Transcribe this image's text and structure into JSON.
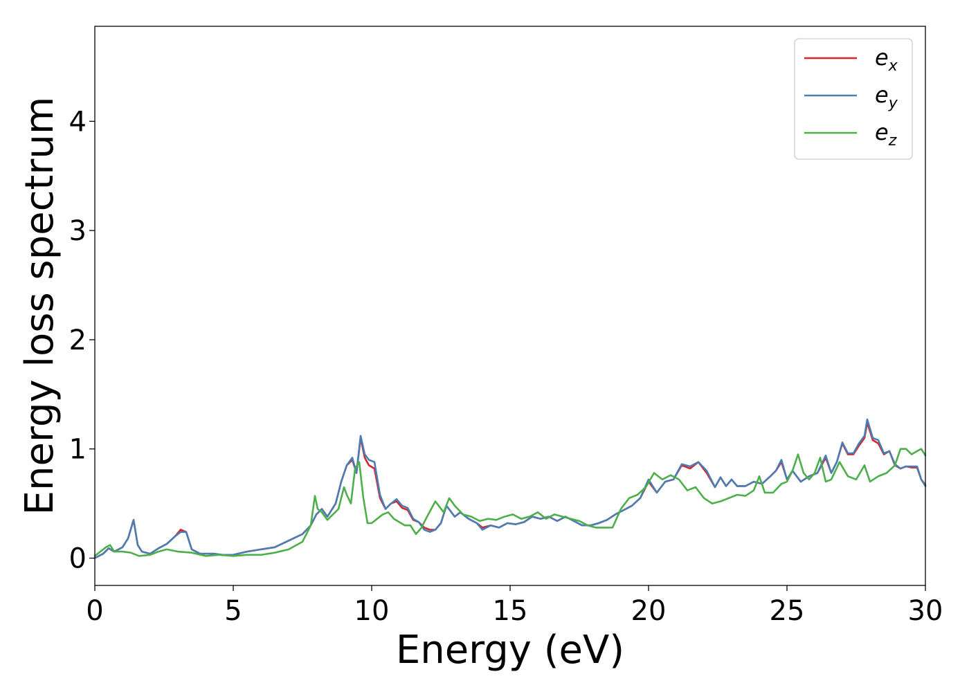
{
  "chart_data": {
    "type": "line",
    "xlabel": "Energy (eV)",
    "ylabel": "Energy loss spectrum",
    "xlim": [
      0,
      30
    ],
    "ylim": [
      -0.25,
      4.87
    ],
    "xticks": [
      "0",
      "5",
      "10",
      "15",
      "20",
      "25",
      "30"
    ],
    "yticks": [
      "0",
      "1",
      "2",
      "3",
      "4"
    ],
    "grid": false,
    "legend_position": "top-right",
    "series": [
      {
        "name": "e_x",
        "legend_base": "e",
        "legend_sub": "x",
        "color": "#d62728",
        "x": [
          0,
          0.3,
          0.5,
          0.7,
          1.0,
          1.2,
          1.4,
          1.55,
          1.7,
          2.0,
          2.3,
          2.6,
          2.9,
          3.1,
          3.3,
          3.5,
          3.8,
          4.0,
          4.3,
          4.6,
          5.0,
          5.5,
          6.0,
          6.5,
          7.0,
          7.5,
          7.8,
          8.0,
          8.2,
          8.4,
          8.7,
          8.9,
          9.1,
          9.3,
          9.45,
          9.6,
          9.75,
          9.9,
          10.1,
          10.3,
          10.5,
          10.7,
          10.9,
          11.1,
          11.3,
          11.5,
          11.7,
          11.9,
          12.1,
          12.3,
          12.5,
          12.7,
          13.0,
          13.2,
          13.5,
          13.8,
          14.0,
          14.3,
          14.6,
          14.9,
          15.2,
          15.5,
          15.8,
          16.1,
          16.4,
          16.7,
          17.0,
          17.3,
          17.6,
          17.9,
          18.2,
          18.5,
          18.8,
          19.1,
          19.4,
          19.7,
          20.0,
          20.3,
          20.6,
          20.9,
          21.2,
          21.5,
          21.8,
          22.1,
          22.4,
          22.6,
          22.8,
          23.0,
          23.2,
          23.5,
          23.8,
          24.1,
          24.4,
          24.6,
          24.8,
          25.0,
          25.2,
          25.5,
          25.8,
          26.1,
          26.4,
          26.6,
          26.8,
          27.0,
          27.2,
          27.4,
          27.6,
          27.8,
          27.9,
          28.1,
          28.3,
          28.5,
          28.7,
          28.9,
          29.1,
          29.3,
          29.5,
          29.7,
          29.85,
          30.0
        ],
        "y": [
          0.0,
          0.04,
          0.09,
          0.06,
          0.1,
          0.18,
          0.35,
          0.12,
          0.06,
          0.04,
          0.09,
          0.13,
          0.2,
          0.26,
          0.24,
          0.08,
          0.04,
          0.04,
          0.04,
          0.03,
          0.03,
          0.06,
          0.08,
          0.1,
          0.16,
          0.22,
          0.3,
          0.4,
          0.45,
          0.38,
          0.5,
          0.7,
          0.85,
          0.9,
          0.78,
          1.1,
          0.92,
          0.85,
          0.82,
          0.55,
          0.45,
          0.5,
          0.52,
          0.46,
          0.44,
          0.35,
          0.33,
          0.28,
          0.26,
          0.26,
          0.32,
          0.48,
          0.38,
          0.42,
          0.36,
          0.32,
          0.28,
          0.3,
          0.28,
          0.32,
          0.31,
          0.33,
          0.38,
          0.36,
          0.38,
          0.34,
          0.38,
          0.34,
          0.3,
          0.3,
          0.32,
          0.35,
          0.4,
          0.44,
          0.48,
          0.55,
          0.7,
          0.6,
          0.7,
          0.72,
          0.85,
          0.82,
          0.88,
          0.78,
          0.65,
          0.74,
          0.66,
          0.72,
          0.66,
          0.66,
          0.7,
          0.68,
          0.75,
          0.8,
          0.88,
          0.72,
          0.8,
          0.7,
          0.75,
          0.78,
          0.92,
          0.78,
          0.88,
          1.05,
          0.95,
          0.95,
          1.03,
          1.1,
          1.24,
          1.08,
          1.05,
          0.95,
          0.98,
          0.85,
          0.82,
          0.84,
          0.83,
          0.83,
          0.72,
          0.67
        ]
      },
      {
        "name": "e_y",
        "legend_base": "e",
        "legend_sub": "y",
        "color": "#4a7db5",
        "x": [
          0,
          0.3,
          0.5,
          0.7,
          1.0,
          1.2,
          1.4,
          1.55,
          1.7,
          2.0,
          2.3,
          2.6,
          2.9,
          3.1,
          3.3,
          3.5,
          3.8,
          4.0,
          4.3,
          4.6,
          5.0,
          5.5,
          6.0,
          6.5,
          7.0,
          7.5,
          7.8,
          8.0,
          8.2,
          8.4,
          8.7,
          8.9,
          9.1,
          9.3,
          9.45,
          9.6,
          9.75,
          9.9,
          10.1,
          10.3,
          10.5,
          10.7,
          10.9,
          11.1,
          11.3,
          11.5,
          11.7,
          11.9,
          12.1,
          12.3,
          12.5,
          12.7,
          13.0,
          13.2,
          13.5,
          13.8,
          14.0,
          14.3,
          14.6,
          14.9,
          15.2,
          15.5,
          15.8,
          16.1,
          16.4,
          16.7,
          17.0,
          17.3,
          17.6,
          17.9,
          18.2,
          18.5,
          18.8,
          19.1,
          19.4,
          19.7,
          20.0,
          20.3,
          20.6,
          20.9,
          21.2,
          21.5,
          21.8,
          22.1,
          22.4,
          22.6,
          22.8,
          23.0,
          23.2,
          23.5,
          23.8,
          24.1,
          24.4,
          24.6,
          24.8,
          25.0,
          25.2,
          25.5,
          25.8,
          26.1,
          26.4,
          26.6,
          26.8,
          27.0,
          27.2,
          27.4,
          27.6,
          27.8,
          27.9,
          28.1,
          28.3,
          28.5,
          28.7,
          28.9,
          29.1,
          29.3,
          29.5,
          29.7,
          29.85,
          30.0
        ],
        "y": [
          0.0,
          0.04,
          0.09,
          0.06,
          0.1,
          0.18,
          0.35,
          0.12,
          0.06,
          0.04,
          0.09,
          0.13,
          0.2,
          0.24,
          0.24,
          0.08,
          0.04,
          0.04,
          0.04,
          0.03,
          0.03,
          0.06,
          0.08,
          0.1,
          0.16,
          0.22,
          0.3,
          0.4,
          0.45,
          0.38,
          0.5,
          0.7,
          0.85,
          0.92,
          0.78,
          1.12,
          0.95,
          0.9,
          0.88,
          0.58,
          0.45,
          0.5,
          0.54,
          0.48,
          0.46,
          0.36,
          0.33,
          0.26,
          0.24,
          0.26,
          0.32,
          0.48,
          0.38,
          0.42,
          0.36,
          0.32,
          0.26,
          0.3,
          0.28,
          0.32,
          0.31,
          0.33,
          0.38,
          0.36,
          0.38,
          0.34,
          0.38,
          0.34,
          0.3,
          0.3,
          0.32,
          0.35,
          0.4,
          0.44,
          0.48,
          0.55,
          0.72,
          0.6,
          0.7,
          0.72,
          0.86,
          0.84,
          0.88,
          0.8,
          0.65,
          0.74,
          0.66,
          0.72,
          0.66,
          0.66,
          0.7,
          0.68,
          0.75,
          0.8,
          0.9,
          0.72,
          0.8,
          0.7,
          0.75,
          0.78,
          0.94,
          0.78,
          0.88,
          1.06,
          0.96,
          0.96,
          1.05,
          1.12,
          1.27,
          1.1,
          1.08,
          0.96,
          0.98,
          0.86,
          0.82,
          0.84,
          0.84,
          0.84,
          0.72,
          0.66
        ]
      },
      {
        "name": "e_z",
        "legend_base": "e",
        "legend_sub": "z",
        "color": "#4daf4a",
        "x": [
          0,
          0.2,
          0.4,
          0.55,
          0.7,
          1.0,
          1.3,
          1.6,
          2.0,
          2.3,
          2.6,
          3.0,
          3.5,
          4.0,
          4.5,
          5.0,
          5.5,
          6.0,
          6.5,
          7.0,
          7.5,
          7.8,
          7.95,
          8.05,
          8.2,
          8.4,
          8.6,
          8.8,
          9.0,
          9.1,
          9.25,
          9.4,
          9.55,
          9.7,
          9.85,
          10.0,
          10.2,
          10.4,
          10.6,
          10.8,
          11.0,
          11.2,
          11.4,
          11.6,
          11.8,
          12.0,
          12.3,
          12.6,
          12.8,
          13.0,
          13.3,
          13.6,
          13.9,
          14.2,
          14.5,
          14.8,
          15.1,
          15.4,
          15.7,
          16.0,
          16.3,
          16.6,
          16.9,
          17.2,
          17.5,
          17.8,
          18.1,
          18.4,
          18.7,
          19.0,
          19.3,
          19.6,
          19.9,
          20.2,
          20.5,
          20.8,
          21.1,
          21.4,
          21.7,
          22.0,
          22.3,
          22.6,
          22.9,
          23.2,
          23.5,
          23.8,
          24.0,
          24.2,
          24.5,
          24.8,
          25.0,
          25.2,
          25.4,
          25.6,
          25.8,
          26.0,
          26.2,
          26.4,
          26.6,
          26.9,
          27.2,
          27.5,
          27.8,
          28.0,
          28.3,
          28.6,
          28.9,
          29.1,
          29.3,
          29.5,
          29.7,
          29.85,
          30.0
        ],
        "y": [
          0.02,
          0.06,
          0.1,
          0.12,
          0.06,
          0.06,
          0.05,
          0.02,
          0.03,
          0.06,
          0.08,
          0.06,
          0.05,
          0.02,
          0.03,
          0.02,
          0.03,
          0.03,
          0.05,
          0.08,
          0.15,
          0.3,
          0.57,
          0.45,
          0.42,
          0.35,
          0.4,
          0.45,
          0.65,
          0.58,
          0.5,
          0.82,
          0.88,
          0.55,
          0.32,
          0.32,
          0.36,
          0.4,
          0.42,
          0.36,
          0.33,
          0.3,
          0.3,
          0.22,
          0.28,
          0.38,
          0.52,
          0.42,
          0.55,
          0.48,
          0.4,
          0.38,
          0.34,
          0.36,
          0.35,
          0.38,
          0.4,
          0.36,
          0.38,
          0.42,
          0.36,
          0.4,
          0.38,
          0.36,
          0.34,
          0.3,
          0.28,
          0.28,
          0.28,
          0.45,
          0.55,
          0.58,
          0.65,
          0.78,
          0.72,
          0.76,
          0.72,
          0.62,
          0.65,
          0.55,
          0.5,
          0.52,
          0.55,
          0.58,
          0.57,
          0.62,
          0.75,
          0.6,
          0.6,
          0.68,
          0.7,
          0.8,
          0.95,
          0.78,
          0.72,
          0.78,
          0.92,
          0.7,
          0.72,
          0.88,
          0.75,
          0.72,
          0.85,
          0.7,
          0.75,
          0.78,
          0.85,
          1.0,
          1.0,
          0.95,
          0.98,
          1.0,
          0.94
        ]
      }
    ]
  }
}
